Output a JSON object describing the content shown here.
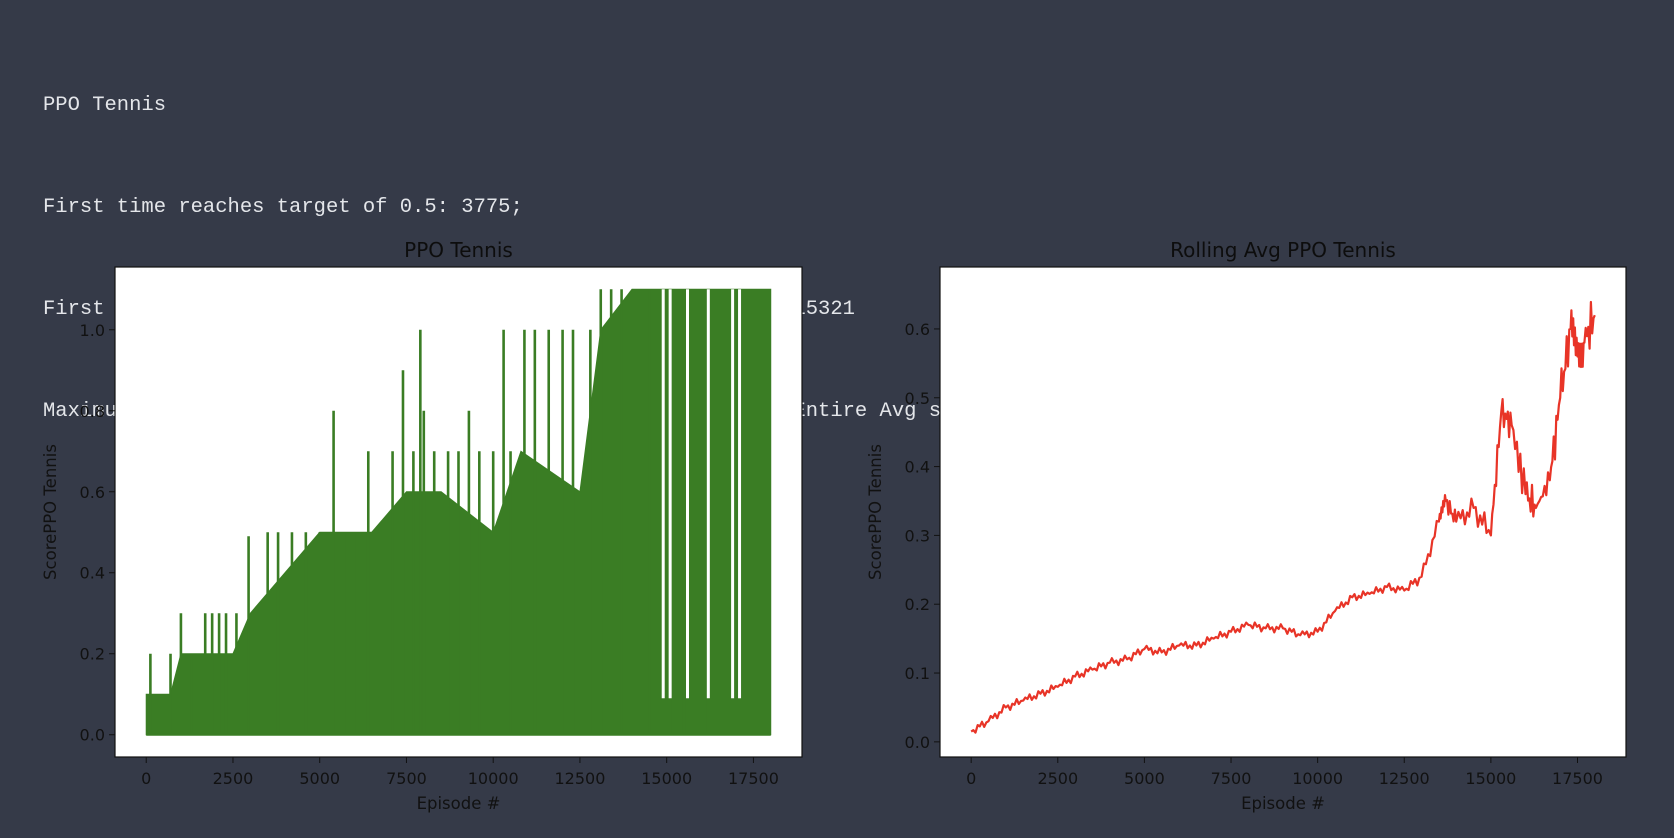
{
  "output_lines": [
    "PPO Tennis",
    "First time reaches target of 0.5: 3775;",
    "First time reaches target of 0.5 with average of window 100: 15321",
    "Maximum score: 1.100; Latest avg with window of 100: 0.643 ; Entire Avg scores 0.207"
  ],
  "colors": {
    "background": "#353a48",
    "text": "#e4e6ea",
    "axis_text": "#111111",
    "raw_series": "#3a7d24",
    "avg_series": "#e83427"
  },
  "chart_data": [
    {
      "type": "line",
      "title": "PPO Tennis",
      "xlabel": "Episode #",
      "ylabel": "ScorePPO Tennis",
      "xlim": [
        -900,
        18900
      ],
      "ylim": [
        -0.055,
        1.155
      ],
      "xticks": [
        0,
        2500,
        5000,
        7500,
        10000,
        12500,
        15000,
        17500
      ],
      "yticks": [
        0.0,
        0.2,
        0.4,
        0.6,
        0.8,
        1.0
      ],
      "ytick_labels": [
        "0.0",
        "0.2",
        "0.4",
        "0.6",
        "0.8",
        "1.0"
      ],
      "grid": false,
      "n_episodes": 18000,
      "series": [
        {
          "color": "#3a7d24",
          "envelope_x": [
            0,
            700,
            1000,
            2000,
            2500,
            3000,
            4000,
            5000,
            5500,
            6500,
            7500,
            8500,
            10000,
            10800,
            12500,
            13100,
            14000,
            15000,
            16000,
            17000,
            17999
          ],
          "envelope_y": [
            0.1,
            0.1,
            0.2,
            0.2,
            0.2,
            0.3,
            0.4,
            0.5,
            0.5,
            0.5,
            0.6,
            0.6,
            0.5,
            0.7,
            0.6,
            1.0,
            1.1,
            1.1,
            1.1,
            1.1,
            1.1
          ],
          "spike_x": [
            120,
            700,
            1000,
            1300,
            1700,
            1900,
            2100,
            2300,
            2600,
            2950,
            3500,
            3800,
            4200,
            4600,
            5000,
            5400,
            5700,
            6000,
            6400,
            6700,
            7100,
            7400,
            7700,
            7900,
            8000,
            8300,
            8700,
            9000,
            9300,
            9600,
            10000,
            10300,
            10500,
            10900,
            11200,
            11600,
            12000,
            12300,
            12800,
            13100,
            13400,
            13700,
            14100,
            14500,
            15100,
            15500,
            16100,
            16700
          ],
          "spike_y": [
            0.2,
            0.2,
            0.3,
            0.2,
            0.3,
            0.3,
            0.3,
            0.3,
            0.3,
            0.49,
            0.5,
            0.5,
            0.5,
            0.5,
            0.5,
            0.8,
            0.5,
            0.5,
            0.7,
            0.5,
            0.7,
            0.9,
            0.7,
            1.0,
            0.8,
            0.7,
            0.7,
            0.7,
            0.8,
            0.7,
            0.7,
            1.0,
            0.7,
            1.0,
            1.0,
            1.0,
            1.0,
            1.0,
            1.0,
            1.1,
            1.1,
            1.1,
            1.1,
            1.1,
            1.1,
            1.1,
            1.1,
            1.1
          ],
          "dip_x": [
            14900,
            15100,
            15600,
            16200,
            16900,
            17100
          ],
          "dip_y": [
            0.0,
            0.0,
            0.0,
            0.0,
            0.0,
            0.0
          ]
        }
      ]
    },
    {
      "type": "line",
      "title": "Rolling Avg PPO Tennis",
      "xlabel": "Episode #",
      "ylabel": "ScorePPO Tennis",
      "xlim": [
        -900,
        18900
      ],
      "ylim": [
        -0.022,
        0.69
      ],
      "xticks": [
        0,
        2500,
        5000,
        7500,
        10000,
        12500,
        15000,
        17500
      ],
      "yticks": [
        0.0,
        0.1,
        0.2,
        0.3,
        0.4,
        0.5,
        0.6
      ],
      "ytick_labels": [
        "0.0",
        "0.1",
        "0.2",
        "0.3",
        "0.4",
        "0.5",
        "0.6"
      ],
      "grid": false,
      "series": [
        {
          "color": "#e83427",
          "x": [
            0,
            500,
            1000,
            1500,
            2000,
            2500,
            3000,
            3500,
            4000,
            4500,
            5000,
            5500,
            6000,
            6500,
            7000,
            7500,
            8000,
            8500,
            9000,
            9500,
            10000,
            10500,
            11000,
            11500,
            12000,
            12500,
            13000,
            13500,
            13700,
            14000,
            14500,
            15000,
            15300,
            15600,
            16000,
            16300,
            16700,
            17000,
            17300,
            17500,
            17700,
            17999
          ],
          "y": [
            0.015,
            0.03,
            0.05,
            0.06,
            0.07,
            0.08,
            0.095,
            0.105,
            0.115,
            0.12,
            0.135,
            0.13,
            0.14,
            0.14,
            0.15,
            0.16,
            0.17,
            0.165,
            0.165,
            0.155,
            0.16,
            0.19,
            0.21,
            0.215,
            0.225,
            0.22,
            0.24,
            0.32,
            0.35,
            0.32,
            0.34,
            0.3,
            0.48,
            0.46,
            0.36,
            0.34,
            0.38,
            0.5,
            0.6,
            0.56,
            0.58,
            0.62
          ]
        }
      ]
    }
  ]
}
